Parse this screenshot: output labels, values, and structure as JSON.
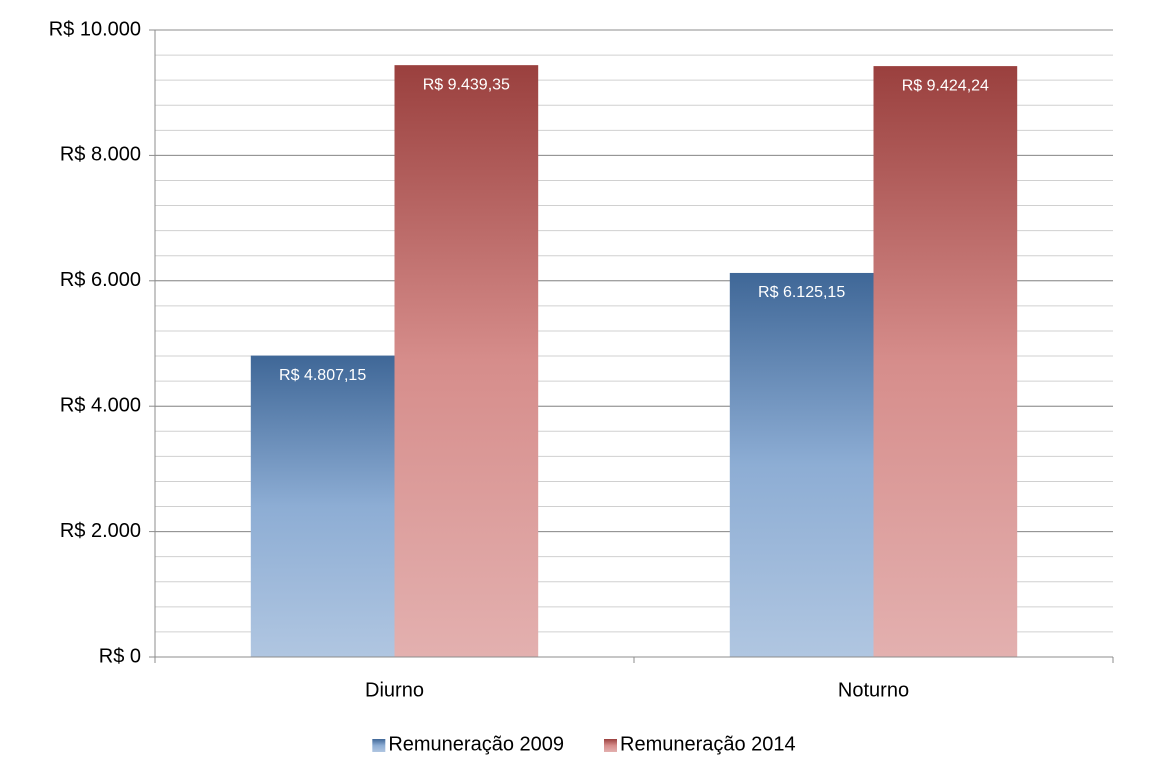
{
  "chart_data": {
    "type": "bar",
    "categories": [
      "Diurno",
      "Noturno"
    ],
    "series": [
      {
        "name": "Remuneração 2009",
        "color": "#4f81bd",
        "values": [
          4807.15,
          6125.15
        ],
        "value_labels": [
          "R$ 4.807,15",
          "R$ 6.125,15"
        ]
      },
      {
        "name": "Remuneração 2014",
        "color": "#c0504d",
        "values": [
          9439.35,
          9424.24
        ],
        "value_labels": [
          "R$ 9.439,35",
          "R$ 9.424,24"
        ]
      }
    ],
    "ylim": [
      0,
      10000
    ],
    "yticks": [
      {
        "value": 0,
        "label": "R$ 0"
      },
      {
        "value": 2000,
        "label": "R$ 2.000"
      },
      {
        "value": 4000,
        "label": "R$ 4.000"
      },
      {
        "value": 6000,
        "label": "R$ 6.000"
      },
      {
        "value": 8000,
        "label": "R$ 8.000"
      },
      {
        "value": 10000,
        "label": "R$ 10.000"
      }
    ],
    "grid": true,
    "minor_grid_step": 400,
    "legend": "bottom"
  }
}
